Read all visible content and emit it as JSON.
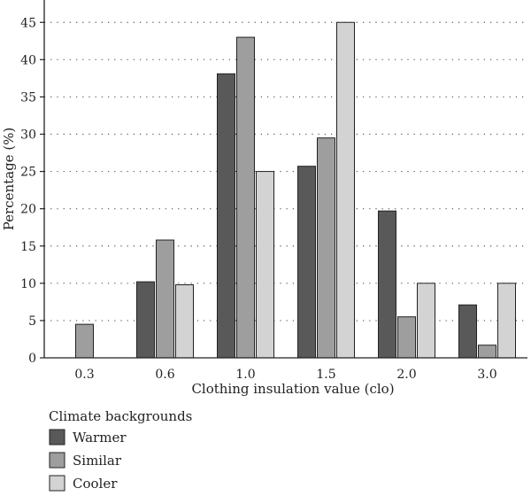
{
  "chart_data": {
    "type": "bar",
    "xlabel": "Clothing insulation value (clo)",
    "ylabel": "Percentage (%)",
    "ylim": [
      0,
      48
    ],
    "yticks": [
      0,
      5,
      10,
      15,
      20,
      25,
      30,
      35,
      40,
      45
    ],
    "grid": "horizontal-dotted",
    "categories": [
      "0.3",
      "0.6",
      "1.0",
      "1.5",
      "2.0",
      "3.0"
    ],
    "series": [
      {
        "name": "Warmer",
        "color": "#595959",
        "values": [
          0,
          10.2,
          38.1,
          25.7,
          19.7,
          7.1
        ]
      },
      {
        "name": "Similar",
        "color": "#9e9e9e",
        "values": [
          4.5,
          15.8,
          43.0,
          29.5,
          5.5,
          1.7
        ]
      },
      {
        "name": "Cooler",
        "color": "#d3d3d3",
        "values": [
          0,
          9.8,
          25.0,
          45.0,
          10.0,
          10.0
        ]
      }
    ],
    "legend": {
      "title": "Climate backgrounds",
      "placement": "bottom-left"
    }
  }
}
